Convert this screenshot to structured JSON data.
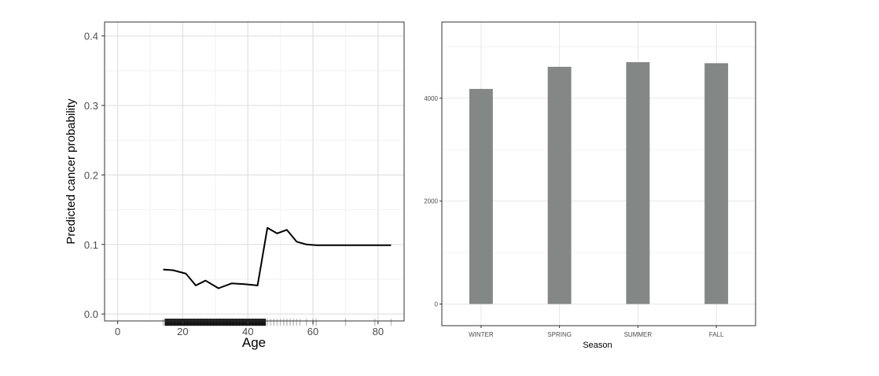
{
  "chart_data": [
    {
      "type": "line",
      "xlabel": "Age",
      "ylabel": "Predicted cancer probability",
      "xlim": [
        -4,
        88
      ],
      "ylim": [
        -0.01,
        0.42
      ],
      "xticks": [
        0,
        20,
        40,
        60,
        80
      ],
      "xtick_labels": [
        "0",
        "20",
        "40",
        "60",
        "80"
      ],
      "yticks": [
        0.0,
        0.1,
        0.2,
        0.3,
        0.4
      ],
      "ytick_labels": [
        "0.0",
        "0.1",
        "0.2",
        "0.3",
        "0.4"
      ],
      "grid": true,
      "series": [
        {
          "x": [
            14,
            17,
            21,
            24,
            27,
            31,
            35,
            39,
            43,
            46,
            49,
            52,
            55,
            58,
            61,
            65,
            70,
            75,
            80,
            84
          ],
          "y": [
            0.064,
            0.063,
            0.058,
            0.041,
            0.048,
            0.037,
            0.044,
            0.043,
            0.041,
            0.124,
            0.116,
            0.121,
            0.104,
            0.1,
            0.099,
            0.099,
            0.099,
            0.099,
            0.099,
            0.099
          ]
        }
      ],
      "rug_x": [
        14,
        15,
        16,
        17,
        18,
        19,
        20,
        21,
        22,
        23,
        24,
        25,
        26,
        27,
        28,
        29,
        30,
        31,
        32,
        33,
        34,
        35,
        36,
        37,
        38,
        39,
        40,
        41,
        42,
        43,
        44,
        45,
        46,
        47,
        48,
        49,
        50,
        51,
        52,
        53,
        54,
        55,
        56,
        58,
        60,
        61,
        70,
        79,
        84
      ]
    },
    {
      "type": "bar",
      "xlabel": "Season",
      "ylabel": "",
      "categories": [
        "WINTER",
        "SPRING",
        "SUMMER",
        "FALL"
      ],
      "values": [
        4180,
        4610,
        4700,
        4680
      ],
      "ylim": [
        -420,
        5480
      ],
      "yticks": [
        0,
        2000,
        4000
      ],
      "ytick_labels": [
        "0",
        "2000",
        "4000"
      ],
      "grid": true,
      "bar_color": "#838886"
    }
  ]
}
